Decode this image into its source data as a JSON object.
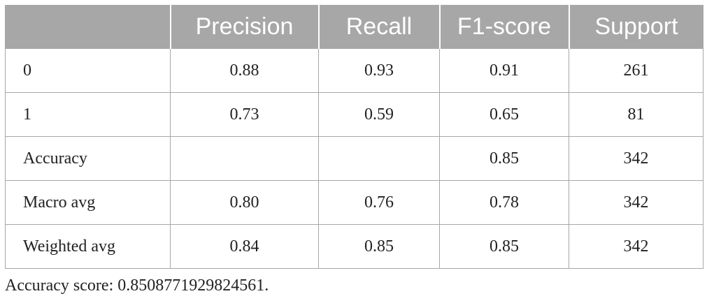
{
  "table": {
    "header": [
      "Precision",
      "Recall",
      "F1-score",
      "Support"
    ],
    "rows": [
      [
        "0",
        "0.88",
        "0.93",
        "0.91",
        "261"
      ],
      [
        "1",
        "0.73",
        "0.59",
        "0.65",
        "81"
      ],
      [
        "Accuracy",
        null,
        null,
        "0.85",
        "342"
      ],
      [
        "Macro avg",
        "0.80",
        "0.76",
        "0.78",
        "342"
      ],
      [
        "Weighted avg",
        "0.84",
        "0.85",
        "0.85",
        "342"
      ]
    ]
  },
  "footnote": "Accuracy score: 0.8508771929824561."
}
